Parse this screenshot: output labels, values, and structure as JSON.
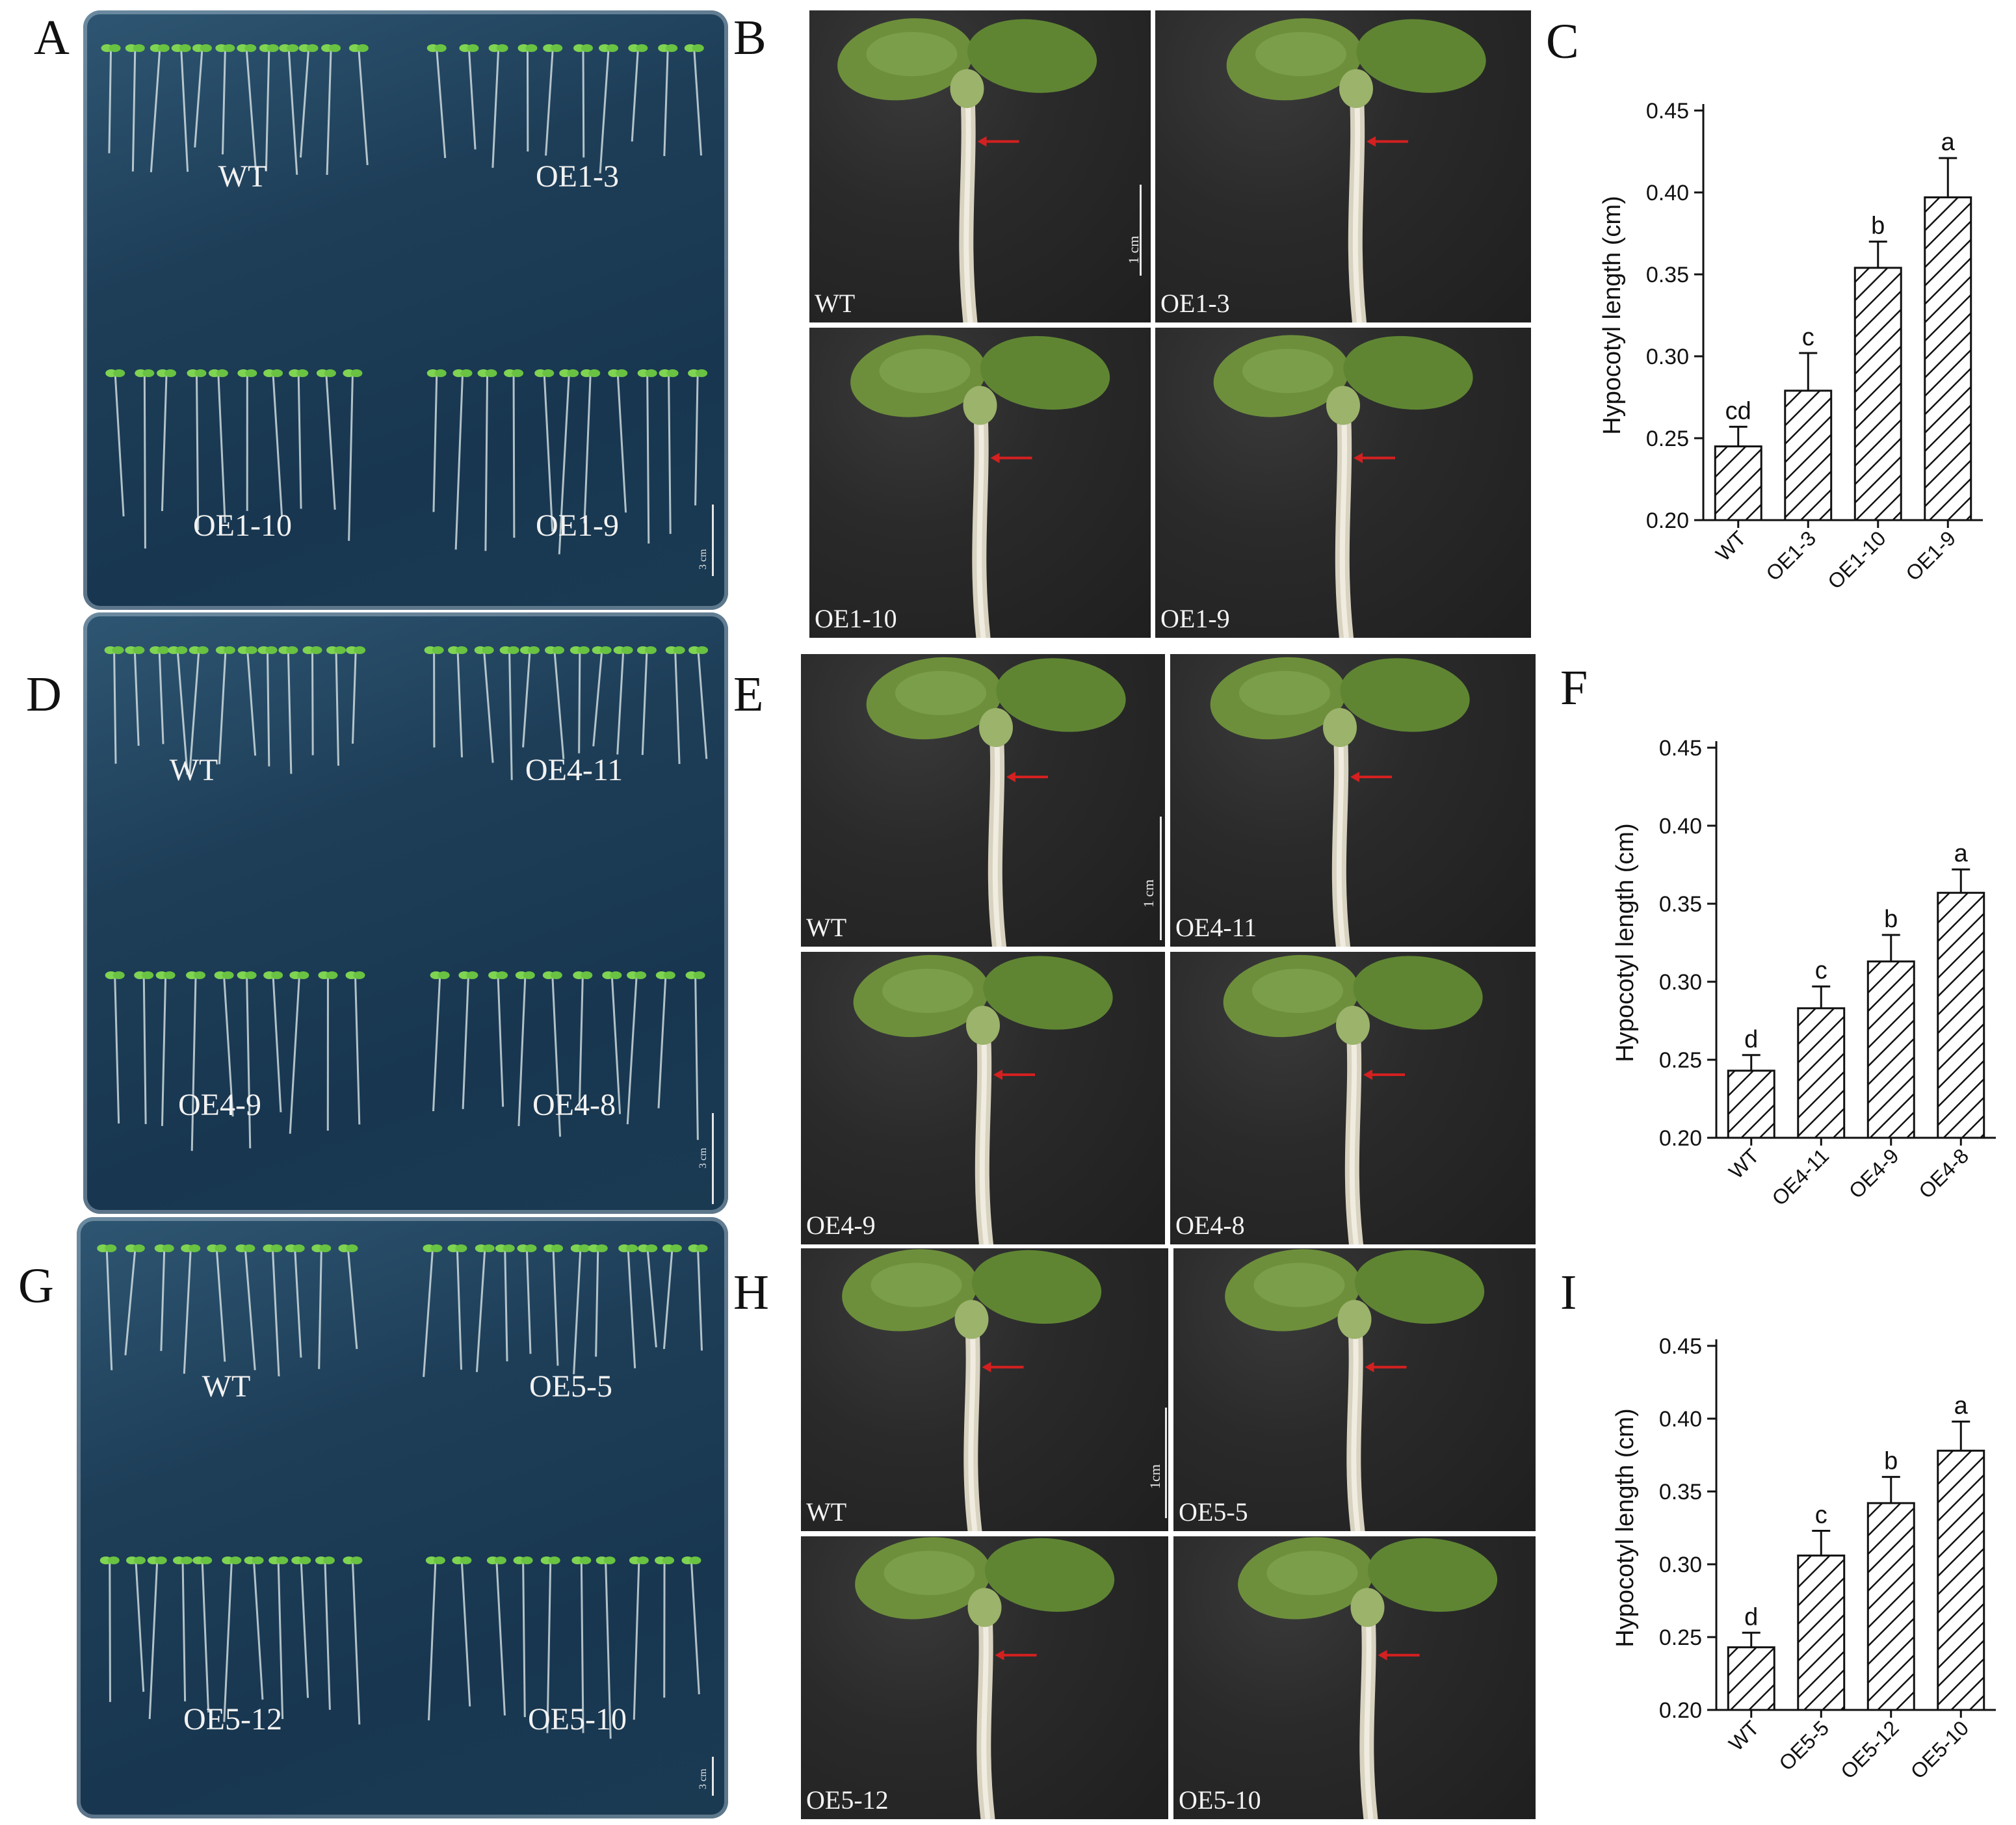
{
  "panel_letters": [
    "A",
    "B",
    "C",
    "D",
    "E",
    "F",
    "G",
    "H",
    "I"
  ],
  "plates": [
    {
      "letter": "A",
      "labels": [
        "WT",
        "OE1-3",
        "OE1-10",
        "OE1-9"
      ],
      "scale": "3 cm"
    },
    {
      "letter": "D",
      "labels": [
        "WT",
        "OE4-11",
        "OE4-9",
        "OE4-8"
      ],
      "scale": "3 cm"
    },
    {
      "letter": "G",
      "labels": [
        "WT",
        "OE5-5",
        "OE5-12",
        "OE5-10"
      ],
      "scale": "3 cm"
    }
  ],
  "photo_groups": [
    {
      "letter": "B",
      "labels": [
        "WT",
        "OE1-3",
        "OE1-10",
        "OE1-9"
      ],
      "scale": "1 cm"
    },
    {
      "letter": "E",
      "labels": [
        "WT",
        "OE4-11",
        "OE4-9",
        "OE4-8"
      ],
      "scale": "1 cm"
    },
    {
      "letter": "H",
      "labels": [
        "WT",
        "OE5-5",
        "OE5-12",
        "OE5-10"
      ],
      "scale": "1cm"
    }
  ],
  "colors": {
    "arrow": "#d42020",
    "plate": "#1e3e58",
    "photo_bg": "#262626",
    "seedling": "#6fcf4a",
    "bar_stroke": "#111111"
  },
  "chart_data": [
    {
      "type": "bar",
      "panel": "C",
      "categories": [
        "WT",
        "OE1-3",
        "OE1-10",
        "OE1-9"
      ],
      "values": [
        0.245,
        0.279,
        0.354,
        0.397
      ],
      "errors": [
        0.012,
        0.023,
        0.016,
        0.024
      ],
      "letters": [
        "cd",
        "c",
        "b",
        "a"
      ],
      "ylabel": "Hypocotyl length (cm)",
      "ylim": [
        0.2,
        0.45
      ],
      "yticks": [
        "0.20",
        "0.25",
        "0.30",
        "0.35",
        "0.40",
        "0.45"
      ],
      "pattern": "diagonal-hatch"
    },
    {
      "type": "bar",
      "panel": "F",
      "categories": [
        "WT",
        "OE4-11",
        "OE4-9",
        "OE4-8"
      ],
      "values": [
        0.243,
        0.283,
        0.313,
        0.357
      ],
      "errors": [
        0.01,
        0.014,
        0.017,
        0.015
      ],
      "letters": [
        "d",
        "c",
        "b",
        "a"
      ],
      "ylabel": "Hypocotyl length (cm)",
      "ylim": [
        0.2,
        0.45
      ],
      "yticks": [
        "0.20",
        "0.25",
        "0.30",
        "0.35",
        "0.40",
        "0.45"
      ],
      "pattern": "diagonal-hatch"
    },
    {
      "type": "bar",
      "panel": "I",
      "categories": [
        "WT",
        "OE5-5",
        "OE5-12",
        "OE5-10"
      ],
      "values": [
        0.243,
        0.306,
        0.342,
        0.378
      ],
      "errors": [
        0.01,
        0.017,
        0.018,
        0.02
      ],
      "letters": [
        "d",
        "c",
        "b",
        "a"
      ],
      "ylabel": "Hypocotyl length (cm)",
      "ylim": [
        0.2,
        0.45
      ],
      "yticks": [
        "0.20",
        "0.25",
        "0.30",
        "0.35",
        "0.40",
        "0.45"
      ],
      "pattern": "diagonal-hatch"
    }
  ]
}
